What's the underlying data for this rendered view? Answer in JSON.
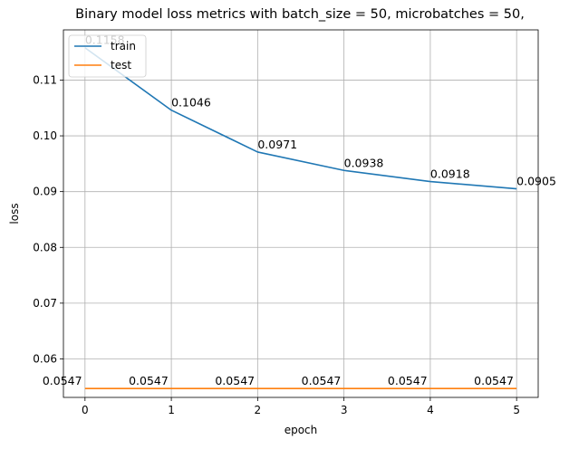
{
  "chart_data": {
    "type": "line",
    "title": "Binary model loss metrics with batch_size = 50, microbatches = 50,",
    "xlabel": "epoch",
    "ylabel": "loss",
    "x": [
      0,
      1,
      2,
      3,
      4,
      5
    ],
    "xlim": [
      -0.25,
      5.25
    ],
    "ylim": [
      0.0531,
      0.119
    ],
    "x_ticks": [
      "0",
      "1",
      "2",
      "3",
      "4",
      "5"
    ],
    "y_ticks": [
      0.06,
      0.07,
      0.08,
      0.09,
      0.1,
      0.11
    ],
    "y_tick_labels": [
      "0.06",
      "0.07",
      "0.08",
      "0.09",
      "0.10",
      "0.11"
    ],
    "grid": true,
    "legend_position": "top-left",
    "series": [
      {
        "name": "train",
        "color": "#1f77b4",
        "values": [
          0.1158,
          0.1046,
          0.0971,
          0.0938,
          0.0918,
          0.0905
        ],
        "labels": [
          "0.1158",
          "0.1046",
          "0.0971",
          "0.0938",
          "0.0918",
          "0.0905"
        ]
      },
      {
        "name": "test",
        "color": "#ff7f0e",
        "values": [
          0.0547,
          0.0547,
          0.0547,
          0.0547,
          0.0547,
          0.0547
        ],
        "labels": [
          "0.0547",
          "0.0547",
          "0.0547",
          "0.0547",
          "0.0547",
          "0.0547"
        ]
      }
    ]
  }
}
